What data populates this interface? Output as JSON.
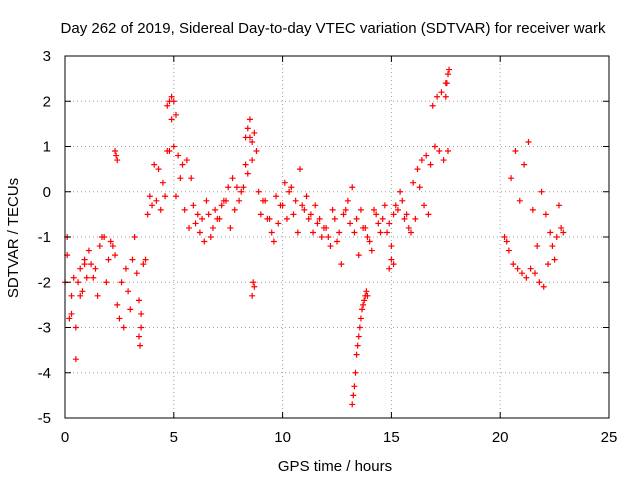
{
  "chart_data": {
    "type": "scatter",
    "title": "Day 262 of 2019, Sidereal Day-to-day VTEC variation (SDTVAR) for receiver wark",
    "xlabel": "GPS time / hours",
    "ylabel": "SDTVAR / TECUs",
    "xlim": [
      0,
      25
    ],
    "ylim": [
      -5,
      3
    ],
    "xticks": [
      0,
      5,
      10,
      15,
      20,
      25
    ],
    "yticks": [
      -5,
      -4,
      -3,
      -2,
      -1,
      0,
      1,
      2,
      3
    ],
    "grid": true,
    "marker": "+",
    "color": "#ff0000",
    "series": [
      {
        "name": "SDTVAR",
        "x": [
          0.0,
          0.1,
          0.2,
          0.3,
          0.4,
          0.5,
          0.6,
          0.7,
          0.8,
          0.9,
          1.0,
          1.2,
          1.4,
          1.6,
          1.8,
          2.0,
          2.2,
          2.4,
          2.6,
          2.8,
          3.0,
          3.2,
          3.4,
          3.6,
          3.8,
          4.0,
          4.2,
          4.4,
          4.6,
          4.8,
          5.0,
          5.2,
          5.4,
          5.6,
          5.8,
          6.0,
          6.2,
          6.4,
          6.6,
          6.8,
          7.0,
          7.2,
          7.4,
          7.6,
          7.8,
          8.0,
          8.2,
          8.4,
          8.6,
          8.8,
          9.0,
          9.2,
          9.4,
          9.6,
          9.8,
          10.0,
          10.2,
          10.4,
          10.6,
          10.8,
          11.0,
          11.2,
          11.4,
          11.6,
          11.8,
          12.0,
          12.2,
          12.4,
          12.6,
          12.8,
          13.0,
          13.2,
          13.4,
          13.6,
          13.8,
          14.0,
          14.2,
          14.4,
          14.6,
          14.8,
          15.0,
          15.2,
          15.4,
          15.6,
          15.8,
          16.0,
          16.2,
          16.4,
          16.6,
          16.8,
          17.0,
          17.2,
          17.4,
          17.6,
          20.2,
          20.4,
          20.6,
          20.8,
          21.0,
          21.2,
          21.4,
          21.6,
          21.8,
          22.0,
          22.2,
          22.4,
          22.6,
          22.8,
          0.1,
          0.3,
          0.5,
          0.7,
          0.9,
          1.1,
          1.3,
          1.5,
          1.7,
          1.9,
          2.1,
          2.3,
          2.5,
          2.7,
          2.9,
          3.1,
          3.3,
          3.5,
          3.7,
          3.9,
          4.1,
          4.3,
          4.5,
          4.7,
          4.9,
          5.1,
          5.3,
          5.5,
          5.7,
          5.9,
          6.1,
          6.3,
          6.5,
          6.7,
          6.9,
          7.1,
          7.3,
          7.5,
          7.7,
          7.9,
          8.1,
          8.3,
          8.5,
          8.7,
          8.9,
          9.1,
          9.3,
          9.5,
          9.7,
          9.9,
          10.1,
          10.3,
          10.5,
          10.7,
          10.9,
          11.1,
          11.3,
          11.5,
          11.7,
          11.9,
          12.1,
          12.3,
          12.5,
          12.7,
          12.9,
          13.1,
          13.3,
          13.5,
          13.7,
          13.9,
          14.1,
          14.3,
          14.5,
          14.7,
          14.9,
          15.1,
          15.3,
          15.5,
          15.7,
          15.9,
          16.1,
          16.3,
          16.5,
          16.7,
          16.9,
          17.1,
          17.3,
          17.5,
          20.3,
          20.5,
          20.7,
          20.9,
          21.1,
          21.3,
          21.5,
          21.7,
          21.9,
          22.1,
          22.3,
          22.5,
          22.7,
          22.9,
          13.2,
          13.25,
          13.3,
          13.35,
          13.4,
          13.45,
          13.5,
          13.55,
          13.6,
          13.65,
          13.7,
          13.75,
          13.8,
          13.85,
          13.9,
          8.6,
          8.65,
          8.7,
          14.9,
          15.0,
          15.1,
          17.5,
          17.55,
          17.6,
          17.65,
          4.7,
          4.8,
          4.9,
          5.0,
          5.1,
          8.3,
          8.4,
          8.5,
          8.6,
          2.3,
          2.35,
          2.4,
          3.4,
          3.5,
          3.45
        ],
        "y": [
          -2.0,
          -1.0,
          -2.8,
          -2.3,
          -1.9,
          -3.0,
          -2.0,
          -1.7,
          -2.2,
          -1.5,
          -1.9,
          -1.6,
          -1.7,
          -1.2,
          -1.0,
          -1.5,
          -1.2,
          -2.5,
          -2.0,
          -1.7,
          -2.6,
          -1.0,
          -2.4,
          -1.6,
          -0.5,
          -0.3,
          -0.2,
          -0.4,
          -0.1,
          0.9,
          1.0,
          0.8,
          0.6,
          0.7,
          0.3,
          -0.7,
          -0.9,
          -1.1,
          -0.5,
          -0.8,
          -0.6,
          -0.3,
          -0.2,
          -0.8,
          -0.4,
          -0.2,
          0.1,
          0.4,
          0.7,
          0.9,
          -0.5,
          -0.2,
          -0.6,
          -1.1,
          -0.7,
          -0.3,
          -0.6,
          0.1,
          -0.2,
          0.5,
          -0.4,
          -0.6,
          -0.9,
          -0.7,
          -1.0,
          -0.8,
          -1.2,
          -0.6,
          -0.9,
          -0.5,
          -0.2,
          0.1,
          -0.6,
          -0.4,
          -0.8,
          -1.1,
          -0.4,
          -0.7,
          -0.6,
          -0.9,
          -1.2,
          -0.3,
          0.0,
          -0.6,
          -0.8,
          0.2,
          0.5,
          0.7,
          0.8,
          0.6,
          1.0,
          0.9,
          0.7,
          0.9,
          -1.0,
          -1.3,
          -1.6,
          -1.7,
          -1.8,
          -1.9,
          -1.7,
          -1.8,
          -2.0,
          -2.1,
          -1.6,
          -1.2,
          -1.0,
          -0.8,
          -1.4,
          -2.7,
          -3.7,
          -2.3,
          -1.6,
          -1.3,
          -1.9,
          -2.3,
          -1.0,
          -2.0,
          -1.1,
          -1.4,
          -2.8,
          -3.0,
          -2.2,
          -1.5,
          -1.8,
          -2.7,
          -1.5,
          -0.1,
          0.6,
          0.5,
          0.2,
          0.9,
          1.6,
          -0.1,
          0.3,
          -0.4,
          -0.8,
          -0.3,
          -0.5,
          -0.6,
          -0.2,
          -1.0,
          -0.4,
          -0.6,
          -0.2,
          0.1,
          0.3,
          0.1,
          0.0,
          0.6,
          1.2,
          1.3,
          0.0,
          -0.2,
          -0.6,
          -0.9,
          -0.1,
          -0.3,
          0.2,
          0.0,
          -0.5,
          -0.9,
          -0.3,
          -0.1,
          -0.5,
          -0.3,
          -0.6,
          -0.8,
          -1.0,
          -0.4,
          -1.1,
          -1.6,
          -0.4,
          -0.7,
          -0.9,
          -1.4,
          -0.8,
          -1.0,
          -1.3,
          -0.5,
          -0.9,
          -0.3,
          -0.7,
          -0.5,
          -0.4,
          -0.2,
          -0.5,
          -0.9,
          -0.6,
          0.1,
          -0.3,
          -0.5,
          1.9,
          2.1,
          2.2,
          2.4,
          -1.1,
          0.3,
          0.9,
          -0.2,
          0.6,
          1.1,
          -0.4,
          -1.2,
          0.0,
          -0.5,
          -0.9,
          -1.5,
          -0.3,
          -0.9,
          -4.7,
          -4.5,
          -4.3,
          -4.0,
          -3.6,
          -3.4,
          -3.2,
          -3.0,
          -2.8,
          -2.6,
          -2.5,
          -2.4,
          -2.3,
          -2.2,
          -2.3,
          -2.3,
          -2.0,
          -2.1,
          -1.7,
          -1.5,
          -1.6,
          2.1,
          2.4,
          2.6,
          2.7,
          1.9,
          2.0,
          2.1,
          2.0,
          1.7,
          1.2,
          1.4,
          1.6,
          1.1,
          0.9,
          0.8,
          0.7,
          -3.2,
          -3.0,
          -3.4
        ]
      }
    ]
  }
}
